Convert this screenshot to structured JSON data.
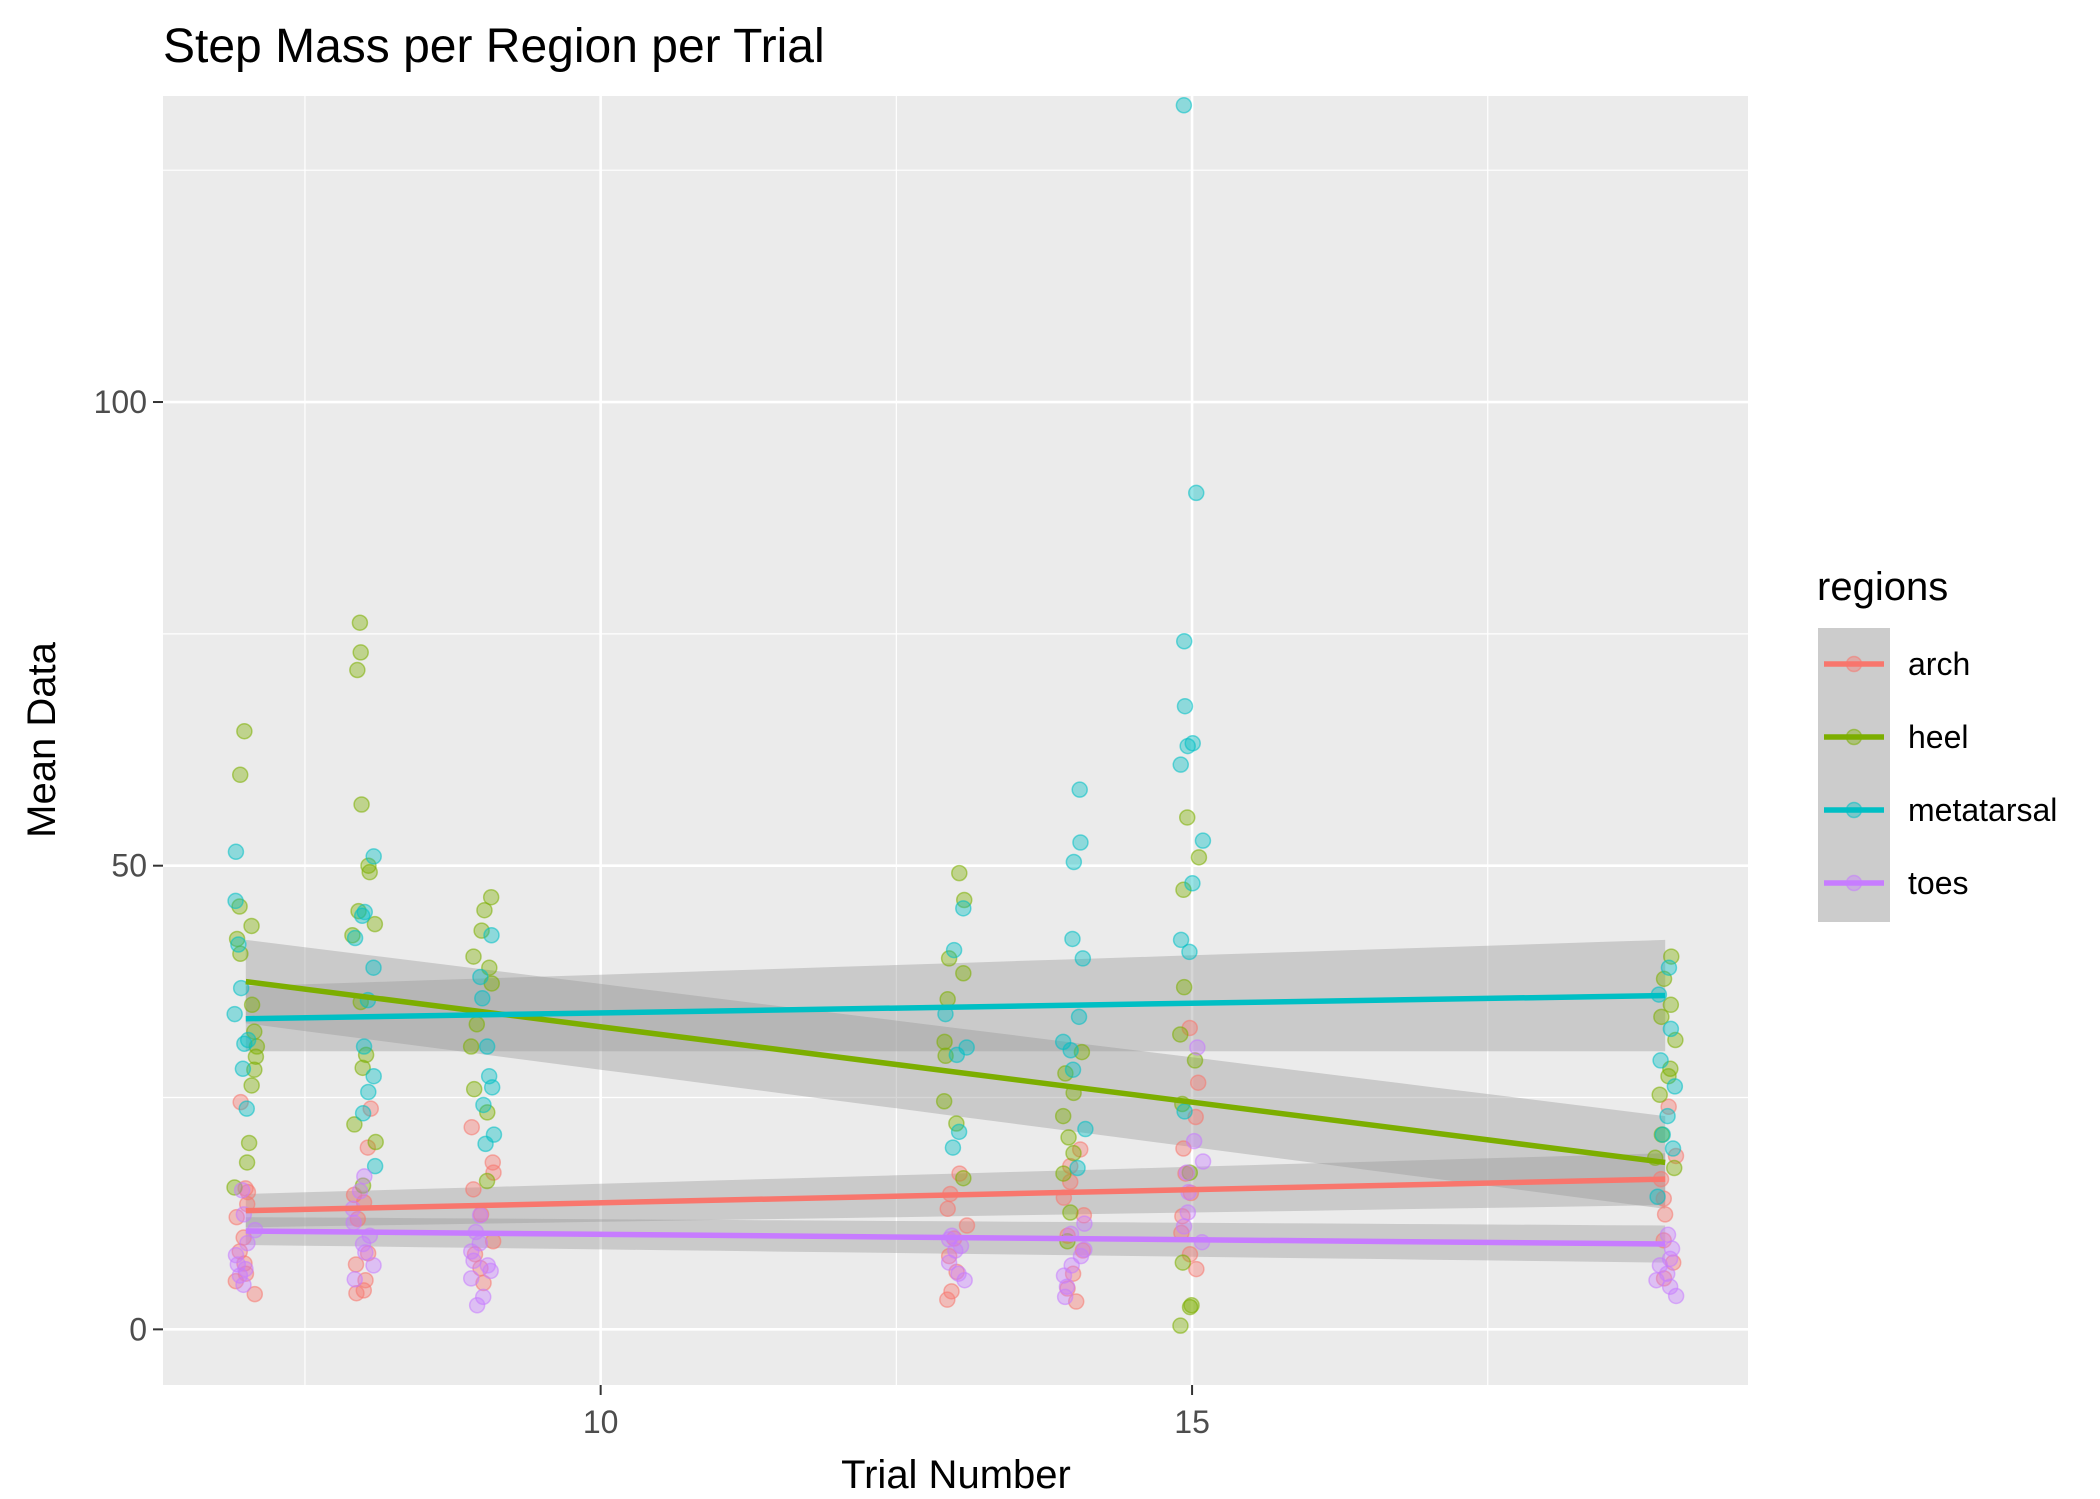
{
  "chart_data": {
    "type": "scatter",
    "title": "Step Mass per Region per Trial",
    "xlabel": "Trial Number",
    "ylabel": "Mean Data",
    "xlim": [
      6.3,
      19.7
    ],
    "ylim": [
      -6,
      133
    ],
    "x_ticks": [
      10,
      15
    ],
    "y_ticks": [
      0,
      50,
      100
    ],
    "x_tick_labels": [
      "10",
      "15"
    ],
    "y_tick_labels": [
      "0",
      "50",
      "100"
    ],
    "grid": true,
    "legend_title": "regions",
    "legend_position": "right",
    "series": [
      {
        "name": "arch",
        "color": "#F8766D",
        "fit": {
          "x": [
            7,
            19
          ],
          "y": [
            12.8,
            16.2
          ],
          "se": [
            1.8,
            2.8
          ]
        },
        "points": [
          [
            7,
            15.2
          ],
          [
            7,
            13.5
          ],
          [
            7,
            12.1
          ],
          [
            7,
            8.4
          ],
          [
            7,
            7.1
          ],
          [
            7,
            6.0
          ],
          [
            7,
            5.2
          ],
          [
            7,
            3.8
          ],
          [
            7,
            14.8
          ],
          [
            7,
            9.9
          ],
          [
            7,
            24.5
          ],
          [
            8,
            23.8
          ],
          [
            8,
            19.6
          ],
          [
            8,
            14.5
          ],
          [
            8,
            13.7
          ],
          [
            8,
            11.9
          ],
          [
            8,
            8.2
          ],
          [
            8,
            7.0
          ],
          [
            8,
            5.3
          ],
          [
            8,
            4.2
          ],
          [
            8,
            3.9
          ],
          [
            9,
            21.8
          ],
          [
            9,
            18.0
          ],
          [
            9,
            16.9
          ],
          [
            9,
            15.1
          ],
          [
            9,
            12.4
          ],
          [
            9,
            9.5
          ],
          [
            9,
            8.1
          ],
          [
            9,
            6.6
          ],
          [
            9,
            5.0
          ],
          [
            13,
            16.8
          ],
          [
            13,
            14.6
          ],
          [
            13,
            13.0
          ],
          [
            13,
            11.2
          ],
          [
            13,
            9.8
          ],
          [
            13,
            7.9
          ],
          [
            13,
            6.2
          ],
          [
            13,
            4.1
          ],
          [
            13,
            3.2
          ],
          [
            14,
            19.4
          ],
          [
            14,
            17.6
          ],
          [
            14,
            15.9
          ],
          [
            14,
            14.2
          ],
          [
            14,
            12.3
          ],
          [
            14,
            10.1
          ],
          [
            14,
            8.5
          ],
          [
            14,
            6.0
          ],
          [
            14,
            4.4
          ],
          [
            14,
            3.0
          ],
          [
            15,
            32.5
          ],
          [
            15,
            26.6
          ],
          [
            15,
            22.9
          ],
          [
            15,
            19.5
          ],
          [
            15,
            16.8
          ],
          [
            15,
            14.7
          ],
          [
            15,
            12.2
          ],
          [
            15,
            10.4
          ],
          [
            15,
            8.1
          ],
          [
            15,
            6.5
          ],
          [
            19,
            24.0
          ],
          [
            19,
            18.7
          ],
          [
            19,
            16.2
          ],
          [
            19,
            14.1
          ],
          [
            19,
            12.4
          ],
          [
            19,
            9.6
          ],
          [
            19,
            7.2
          ],
          [
            19,
            5.5
          ]
        ]
      },
      {
        "name": "heel",
        "color": "#7CAE00",
        "fit": {
          "x": [
            7,
            19
          ],
          "y": [
            37.5,
            18.0
          ],
          "se": [
            4.5,
            5.0
          ]
        },
        "points": [
          [
            7,
            64.5
          ],
          [
            7,
            59.8
          ],
          [
            7,
            45.6
          ],
          [
            7,
            43.5
          ],
          [
            7,
            42.1
          ],
          [
            7,
            40.5
          ],
          [
            7,
            35.0
          ],
          [
            7,
            32.1
          ],
          [
            7,
            30.5
          ],
          [
            7,
            29.4
          ],
          [
            7,
            28.0
          ],
          [
            7,
            26.3
          ],
          [
            7,
            20.1
          ],
          [
            7,
            18.0
          ],
          [
            7,
            15.3
          ],
          [
            8,
            76.2
          ],
          [
            8,
            73.0
          ],
          [
            8,
            71.1
          ],
          [
            8,
            56.6
          ],
          [
            8,
            50.0
          ],
          [
            8,
            49.3
          ],
          [
            8,
            45.1
          ],
          [
            8,
            43.7
          ],
          [
            8,
            42.5
          ],
          [
            8,
            35.3
          ],
          [
            8,
            29.6
          ],
          [
            8,
            28.2
          ],
          [
            8,
            22.1
          ],
          [
            8,
            20.2
          ],
          [
            8,
            15.5
          ],
          [
            9,
            46.6
          ],
          [
            9,
            45.2
          ],
          [
            9,
            43.0
          ],
          [
            9,
            40.2
          ],
          [
            9,
            39.0
          ],
          [
            9,
            37.3
          ],
          [
            9,
            32.9
          ],
          [
            9,
            30.5
          ],
          [
            9,
            25.9
          ],
          [
            9,
            23.4
          ],
          [
            9,
            16.0
          ],
          [
            13,
            49.2
          ],
          [
            13,
            46.3
          ],
          [
            13,
            40.0
          ],
          [
            13,
            38.4
          ],
          [
            13,
            35.6
          ],
          [
            13,
            31.0
          ],
          [
            13,
            29.5
          ],
          [
            13,
            24.6
          ],
          [
            13,
            22.2
          ],
          [
            13,
            16.3
          ],
          [
            14,
            29.9
          ],
          [
            14,
            27.6
          ],
          [
            14,
            25.5
          ],
          [
            14,
            23.0
          ],
          [
            14,
            20.7
          ],
          [
            14,
            19.0
          ],
          [
            14,
            16.8
          ],
          [
            14,
            12.6
          ],
          [
            14,
            9.5
          ],
          [
            15,
            55.2
          ],
          [
            15,
            50.9
          ],
          [
            15,
            47.4
          ],
          [
            15,
            36.9
          ],
          [
            15,
            31.8
          ],
          [
            15,
            29.0
          ],
          [
            15,
            24.3
          ],
          [
            15,
            16.9
          ],
          [
            15,
            7.2
          ],
          [
            15,
            2.6
          ],
          [
            15,
            2.4
          ],
          [
            15,
            0.4
          ],
          [
            19,
            40.2
          ],
          [
            19,
            37.8
          ],
          [
            19,
            35.0
          ],
          [
            19,
            33.7
          ],
          [
            19,
            31.2
          ],
          [
            19,
            28.1
          ],
          [
            19,
            27.3
          ],
          [
            19,
            25.3
          ],
          [
            19,
            21.0
          ],
          [
            19,
            18.5
          ],
          [
            19,
            17.4
          ]
        ]
      },
      {
        "name": "metatarsal",
        "color": "#00BFC4",
        "fit": {
          "x": [
            7,
            19
          ],
          "y": [
            33.5,
            36.0
          ],
          "se": [
            3.5,
            6.0
          ]
        },
        "points": [
          [
            7,
            51.5
          ],
          [
            7,
            46.2
          ],
          [
            7,
            41.5
          ],
          [
            7,
            36.8
          ],
          [
            7,
            34.0
          ],
          [
            7,
            31.2
          ],
          [
            7,
            30.8
          ],
          [
            7,
            28.1
          ],
          [
            7,
            23.8
          ],
          [
            8,
            51.0
          ],
          [
            8,
            45.0
          ],
          [
            8,
            44.6
          ],
          [
            8,
            42.2
          ],
          [
            8,
            39.0
          ],
          [
            8,
            35.5
          ],
          [
            8,
            30.5
          ],
          [
            8,
            27.3
          ],
          [
            8,
            25.6
          ],
          [
            8,
            23.3
          ],
          [
            8,
            17.6
          ],
          [
            9,
            42.5
          ],
          [
            9,
            38.0
          ],
          [
            9,
            35.7
          ],
          [
            9,
            30.5
          ],
          [
            9,
            27.3
          ],
          [
            9,
            26.1
          ],
          [
            9,
            24.2
          ],
          [
            9,
            21.0
          ],
          [
            9,
            20.0
          ],
          [
            13,
            45.4
          ],
          [
            13,
            40.9
          ],
          [
            13,
            34.0
          ],
          [
            13,
            30.4
          ],
          [
            13,
            29.6
          ],
          [
            13,
            21.3
          ],
          [
            13,
            19.6
          ],
          [
            14,
            58.2
          ],
          [
            14,
            52.5
          ],
          [
            14,
            50.4
          ],
          [
            14,
            42.1
          ],
          [
            14,
            40.0
          ],
          [
            14,
            33.7
          ],
          [
            14,
            31.0
          ],
          [
            14,
            30.1
          ],
          [
            14,
            28.0
          ],
          [
            14,
            21.6
          ],
          [
            14,
            17.4
          ],
          [
            15,
            132.0
          ],
          [
            15,
            90.2
          ],
          [
            15,
            74.2
          ],
          [
            15,
            67.2
          ],
          [
            15,
            63.2
          ],
          [
            15,
            62.9
          ],
          [
            15,
            60.9
          ],
          [
            15,
            52.7
          ],
          [
            15,
            48.1
          ],
          [
            15,
            42.0
          ],
          [
            15,
            40.7
          ],
          [
            15,
            23.5
          ],
          [
            19,
            39.0
          ],
          [
            19,
            36.1
          ],
          [
            19,
            32.4
          ],
          [
            19,
            29.0
          ],
          [
            19,
            26.2
          ],
          [
            19,
            23.0
          ],
          [
            19,
            21.0
          ],
          [
            19,
            19.5
          ],
          [
            19,
            14.3
          ]
        ]
      },
      {
        "name": "toes",
        "color": "#C77CFF",
        "fit": {
          "x": [
            7,
            19
          ],
          "y": [
            10.6,
            9.2
          ],
          "se": [
            1.5,
            2.0
          ]
        },
        "points": [
          [
            7,
            15.0
          ],
          [
            7,
            12.4
          ],
          [
            7,
            10.7
          ],
          [
            7,
            9.3
          ],
          [
            7,
            8.0
          ],
          [
            7,
            7.0
          ],
          [
            7,
            6.5
          ],
          [
            7,
            5.8
          ],
          [
            7,
            4.8
          ],
          [
            8,
            16.5
          ],
          [
            8,
            14.9
          ],
          [
            8,
            13.0
          ],
          [
            8,
            11.5
          ],
          [
            8,
            10.1
          ],
          [
            8,
            9.2
          ],
          [
            8,
            8.3
          ],
          [
            8,
            6.9
          ],
          [
            8,
            5.4
          ],
          [
            9,
            12.3
          ],
          [
            9,
            10.5
          ],
          [
            9,
            9.3
          ],
          [
            9,
            8.4
          ],
          [
            9,
            7.4
          ],
          [
            9,
            6.9
          ],
          [
            9,
            6.3
          ],
          [
            9,
            5.5
          ],
          [
            9,
            3.5
          ],
          [
            9,
            2.6
          ],
          [
            13,
            10.1
          ],
          [
            13,
            9.7
          ],
          [
            13,
            9.0
          ],
          [
            13,
            8.5
          ],
          [
            13,
            7.2
          ],
          [
            13,
            6.0
          ],
          [
            13,
            5.3
          ],
          [
            14,
            11.4
          ],
          [
            14,
            10.3
          ],
          [
            14,
            8.6
          ],
          [
            14,
            7.9
          ],
          [
            14,
            6.9
          ],
          [
            14,
            5.8
          ],
          [
            14,
            4.6
          ],
          [
            14,
            3.5
          ],
          [
            15,
            30.4
          ],
          [
            15,
            20.3
          ],
          [
            15,
            18.1
          ],
          [
            15,
            16.9
          ],
          [
            15,
            14.8
          ],
          [
            15,
            12.6
          ],
          [
            15,
            11.1
          ],
          [
            15,
            9.4
          ],
          [
            19,
            10.2
          ],
          [
            19,
            8.7
          ],
          [
            19,
            7.6
          ],
          [
            19,
            6.9
          ],
          [
            19,
            6.0
          ],
          [
            19,
            5.3
          ],
          [
            19,
            4.6
          ],
          [
            19,
            3.6
          ]
        ]
      }
    ]
  }
}
